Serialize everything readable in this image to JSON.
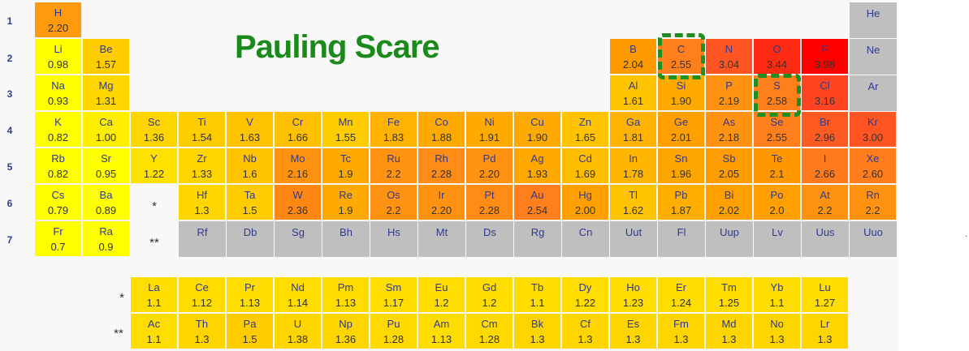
{
  "title": "Pauling Scare",
  "row_labels": [
    "1",
    "2",
    "3",
    "4",
    "5",
    "6",
    "7"
  ],
  "series_markers": [
    "*",
    "**"
  ],
  "right_dot": ".",
  "highlighted": [
    "C",
    "S"
  ],
  "elements": [
    {
      "s": "H",
      "en": "2.20",
      "r": 1,
      "c": 1,
      "color": "#ff9a0d"
    },
    {
      "s": "He",
      "en": "",
      "r": 1,
      "c": 18,
      "color": "#bfbfbf"
    },
    {
      "s": "Li",
      "en": "0.98",
      "r": 2,
      "c": 1,
      "color": "#ffff00"
    },
    {
      "s": "Be",
      "en": "1.57",
      "r": 2,
      "c": 2,
      "color": "#ffcc00"
    },
    {
      "s": "B",
      "en": "2.04",
      "r": 2,
      "c": 13,
      "color": "#ff9900"
    },
    {
      "s": "C",
      "en": "2.55",
      "r": 2,
      "c": 14,
      "color": "#ff7f1c"
    },
    {
      "s": "N",
      "en": "3.04",
      "r": 2,
      "c": 15,
      "color": "#ff5522"
    },
    {
      "s": "O",
      "en": "3.44",
      "r": 2,
      "c": 16,
      "color": "#ff2a12"
    },
    {
      "s": "F",
      "en": "3.98",
      "r": 2,
      "c": 17,
      "color": "#ff0000"
    },
    {
      "s": "Ne",
      "en": "",
      "r": 2,
      "c": 18,
      "color": "#bfbfbf"
    },
    {
      "s": "Na",
      "en": "0.93",
      "r": 3,
      "c": 1,
      "color": "#ffff00"
    },
    {
      "s": "Mg",
      "en": "1.31",
      "r": 3,
      "c": 2,
      "color": "#ffd700"
    },
    {
      "s": "Al",
      "en": "1.61",
      "r": 3,
      "c": 13,
      "color": "#ffc300"
    },
    {
      "s": "Si",
      "en": "1.90",
      "r": 3,
      "c": 14,
      "color": "#ffaa00"
    },
    {
      "s": "P",
      "en": "2.19",
      "r": 3,
      "c": 15,
      "color": "#ff9311"
    },
    {
      "s": "S",
      "en": "2.58",
      "r": 3,
      "c": 16,
      "color": "#ff7f1c"
    },
    {
      "s": "Cl",
      "en": "3.16",
      "r": 3,
      "c": 17,
      "color": "#ff4422"
    },
    {
      "s": "Ar",
      "en": "",
      "r": 3,
      "c": 18,
      "color": "#bfbfbf"
    },
    {
      "s": "K",
      "en": "0.82",
      "r": 4,
      "c": 1,
      "color": "#ffff00"
    },
    {
      "s": "Ca",
      "en": "1.00",
      "r": 4,
      "c": 2,
      "color": "#ffee00"
    },
    {
      "s": "Sc",
      "en": "1.36",
      "r": 4,
      "c": 3,
      "color": "#ffd500"
    },
    {
      "s": "Ti",
      "en": "1.54",
      "r": 4,
      "c": 4,
      "color": "#ffcc00"
    },
    {
      "s": "V",
      "en": "1.63",
      "r": 4,
      "c": 5,
      "color": "#ffc300"
    },
    {
      "s": "Cr",
      "en": "1.66",
      "r": 4,
      "c": 6,
      "color": "#ffc000"
    },
    {
      "s": "Mn",
      "en": "1.55",
      "r": 4,
      "c": 7,
      "color": "#ffcc00"
    },
    {
      "s": "Fe",
      "en": "1.83",
      "r": 4,
      "c": 8,
      "color": "#ffb300"
    },
    {
      "s": "Co",
      "en": "1.88",
      "r": 4,
      "c": 9,
      "color": "#ffaa00"
    },
    {
      "s": "Ni",
      "en": "1.91",
      "r": 4,
      "c": 10,
      "color": "#ffaa00"
    },
    {
      "s": "Cu",
      "en": "1.90",
      "r": 4,
      "c": 11,
      "color": "#ffaa00"
    },
    {
      "s": "Zn",
      "en": "1.65",
      "r": 4,
      "c": 12,
      "color": "#ffc300"
    },
    {
      "s": "Ga",
      "en": "1.81",
      "r": 4,
      "c": 13,
      "color": "#ffb300"
    },
    {
      "s": "Ge",
      "en": "2.01",
      "r": 4,
      "c": 14,
      "color": "#ff9f00"
    },
    {
      "s": "As",
      "en": "2.18",
      "r": 4,
      "c": 15,
      "color": "#ff9311"
    },
    {
      "s": "Se",
      "en": "2.55",
      "r": 4,
      "c": 16,
      "color": "#ff7f1c"
    },
    {
      "s": "Br",
      "en": "2.96",
      "r": 4,
      "c": 17,
      "color": "#ff5a22"
    },
    {
      "s": "Kr",
      "en": "3.00",
      "r": 4,
      "c": 18,
      "color": "#ff5522"
    },
    {
      "s": "Rb",
      "en": "0.82",
      "r": 5,
      "c": 1,
      "color": "#ffff00"
    },
    {
      "s": "Sr",
      "en": "0.95",
      "r": 5,
      "c": 2,
      "color": "#ffff00"
    },
    {
      "s": "Y",
      "en": "1.22",
      "r": 5,
      "c": 3,
      "color": "#ffe100"
    },
    {
      "s": "Zr",
      "en": "1.33",
      "r": 5,
      "c": 4,
      "color": "#ffd500"
    },
    {
      "s": "Nb",
      "en": "1.6",
      "r": 5,
      "c": 5,
      "color": "#ffc300"
    },
    {
      "s": "Mo",
      "en": "2.16",
      "r": 5,
      "c": 6,
      "color": "#ff9311"
    },
    {
      "s": "Tc",
      "en": "1.9",
      "r": 5,
      "c": 7,
      "color": "#ffaa00"
    },
    {
      "s": "Ru",
      "en": "2.2",
      "r": 5,
      "c": 8,
      "color": "#ff9311"
    },
    {
      "s": "Rh",
      "en": "2.28",
      "r": 5,
      "c": 9,
      "color": "#ff8c14"
    },
    {
      "s": "Pd",
      "en": "2.20",
      "r": 5,
      "c": 10,
      "color": "#ff9311"
    },
    {
      "s": "Ag",
      "en": "1.93",
      "r": 5,
      "c": 11,
      "color": "#ffa800"
    },
    {
      "s": "Cd",
      "en": "1.69",
      "r": 5,
      "c": 12,
      "color": "#ffbd00"
    },
    {
      "s": "In",
      "en": "1.78",
      "r": 5,
      "c": 13,
      "color": "#ffb600"
    },
    {
      "s": "Sn",
      "en": "1.96",
      "r": 5,
      "c": 14,
      "color": "#ffa500"
    },
    {
      "s": "Sb",
      "en": "2.05",
      "r": 5,
      "c": 15,
      "color": "#ff9c00"
    },
    {
      "s": "Te",
      "en": "2.1",
      "r": 5,
      "c": 16,
      "color": "#ff9800"
    },
    {
      "s": "I",
      "en": "2.66",
      "r": 5,
      "c": 17,
      "color": "#ff7a1c"
    },
    {
      "s": "Xe",
      "en": "2.60",
      "r": 5,
      "c": 18,
      "color": "#ff7d1c"
    },
    {
      "s": "Cs",
      "en": "0.79",
      "r": 6,
      "c": 1,
      "color": "#ffff00"
    },
    {
      "s": "Ba",
      "en": "0.89",
      "r": 6,
      "c": 2,
      "color": "#ffff00"
    },
    {
      "s": "Hf",
      "en": "1.3",
      "r": 6,
      "c": 4,
      "color": "#ffd700"
    },
    {
      "s": "Ta",
      "en": "1.5",
      "r": 6,
      "c": 5,
      "color": "#ffcc00"
    },
    {
      "s": "W",
      "en": "2.36",
      "r": 6,
      "c": 6,
      "color": "#ff8815"
    },
    {
      "s": "Re",
      "en": "1.9",
      "r": 6,
      "c": 7,
      "color": "#ffaa00"
    },
    {
      "s": "Os",
      "en": "2.2",
      "r": 6,
      "c": 8,
      "color": "#ff9311"
    },
    {
      "s": "Ir",
      "en": "2.20",
      "r": 6,
      "c": 9,
      "color": "#ff9311"
    },
    {
      "s": "Pt",
      "en": "2.28",
      "r": 6,
      "c": 10,
      "color": "#ff8c14"
    },
    {
      "s": "Au",
      "en": "2.54",
      "r": 6,
      "c": 11,
      "color": "#ff7f1c"
    },
    {
      "s": "Hg",
      "en": "2.00",
      "r": 6,
      "c": 12,
      "color": "#ffa000"
    },
    {
      "s": "Tl",
      "en": "1.62",
      "r": 6,
      "c": 13,
      "color": "#ffc300"
    },
    {
      "s": "Pb",
      "en": "1.87",
      "r": 6,
      "c": 14,
      "color": "#ffae00"
    },
    {
      "s": "Bi",
      "en": "2.02",
      "r": 6,
      "c": 15,
      "color": "#ff9f00"
    },
    {
      "s": "Po",
      "en": "2.0",
      "r": 6,
      "c": 16,
      "color": "#ffa000"
    },
    {
      "s": "At",
      "en": "2.2",
      "r": 6,
      "c": 17,
      "color": "#ff9311"
    },
    {
      "s": "Rn",
      "en": "2.2",
      "r": 6,
      "c": 18,
      "color": "#ff9311"
    },
    {
      "s": "Fr",
      "en": "0.7",
      "r": 7,
      "c": 1,
      "color": "#ffff00"
    },
    {
      "s": "Ra",
      "en": "0.9",
      "r": 7,
      "c": 2,
      "color": "#ffff00"
    },
    {
      "s": "Rf",
      "en": "",
      "r": 7,
      "c": 4,
      "color": "#bfbfbf"
    },
    {
      "s": "Db",
      "en": "",
      "r": 7,
      "c": 5,
      "color": "#bfbfbf"
    },
    {
      "s": "Sg",
      "en": "",
      "r": 7,
      "c": 6,
      "color": "#bfbfbf"
    },
    {
      "s": "Bh",
      "en": "",
      "r": 7,
      "c": 7,
      "color": "#bfbfbf"
    },
    {
      "s": "Hs",
      "en": "",
      "r": 7,
      "c": 8,
      "color": "#bfbfbf"
    },
    {
      "s": "Mt",
      "en": "",
      "r": 7,
      "c": 9,
      "color": "#bfbfbf"
    },
    {
      "s": "Ds",
      "en": "",
      "r": 7,
      "c": 10,
      "color": "#bfbfbf"
    },
    {
      "s": "Rg",
      "en": "",
      "r": 7,
      "c": 11,
      "color": "#bfbfbf"
    },
    {
      "s": "Cn",
      "en": "",
      "r": 7,
      "c": 12,
      "color": "#bfbfbf"
    },
    {
      "s": "Uut",
      "en": "",
      "r": 7,
      "c": 13,
      "color": "#bfbfbf"
    },
    {
      "s": "Fl",
      "en": "",
      "r": 7,
      "c": 14,
      "color": "#bfbfbf"
    },
    {
      "s": "Uup",
      "en": "",
      "r": 7,
      "c": 15,
      "color": "#bfbfbf"
    },
    {
      "s": "Lv",
      "en": "",
      "r": 7,
      "c": 16,
      "color": "#bfbfbf"
    },
    {
      "s": "Uus",
      "en": "",
      "r": 7,
      "c": 17,
      "color": "#bfbfbf"
    },
    {
      "s": "Uuo",
      "en": "",
      "r": 7,
      "c": 18,
      "color": "#bfbfbf"
    },
    {
      "s": "La",
      "en": "1.1",
      "r": 8,
      "c": 3,
      "color": "#ffdd00"
    },
    {
      "s": "Ce",
      "en": "1.12",
      "r": 8,
      "c": 4,
      "color": "#ffdd00"
    },
    {
      "s": "Pr",
      "en": "1.13",
      "r": 8,
      "c": 5,
      "color": "#ffdd00"
    },
    {
      "s": "Nd",
      "en": "1.14",
      "r": 8,
      "c": 6,
      "color": "#ffdd00"
    },
    {
      "s": "Pm",
      "en": "1.13",
      "r": 8,
      "c": 7,
      "color": "#ffdd00"
    },
    {
      "s": "Sm",
      "en": "1.17",
      "r": 8,
      "c": 8,
      "color": "#ffdd00"
    },
    {
      "s": "Eu",
      "en": "1.2",
      "r": 8,
      "c": 9,
      "color": "#ffdd00"
    },
    {
      "s": "Gd",
      "en": "1.2",
      "r": 8,
      "c": 10,
      "color": "#ffdd00"
    },
    {
      "s": "Tb",
      "en": "1.1",
      "r": 8,
      "c": 11,
      "color": "#ffdd00"
    },
    {
      "s": "Dy",
      "en": "1.22",
      "r": 8,
      "c": 12,
      "color": "#ffdd00"
    },
    {
      "s": "Ho",
      "en": "1.23",
      "r": 8,
      "c": 13,
      "color": "#ffdd00"
    },
    {
      "s": "Er",
      "en": "1.24",
      "r": 8,
      "c": 14,
      "color": "#ffdd00"
    },
    {
      "s": "Tm",
      "en": "1.25",
      "r": 8,
      "c": 15,
      "color": "#ffdd00"
    },
    {
      "s": "Yb",
      "en": "1.1",
      "r": 8,
      "c": 16,
      "color": "#ffdd00"
    },
    {
      "s": "Lu",
      "en": "1.27",
      "r": 8,
      "c": 17,
      "color": "#ffdd00"
    },
    {
      "s": "Ac",
      "en": "1.1",
      "r": 9,
      "c": 3,
      "color": "#ffdd00"
    },
    {
      "s": "Th",
      "en": "1.3",
      "r": 9,
      "c": 4,
      "color": "#ffd500"
    },
    {
      "s": "Pa",
      "en": "1.5",
      "r": 9,
      "c": 5,
      "color": "#ffcc00"
    },
    {
      "s": "U",
      "en": "1.38",
      "r": 9,
      "c": 6,
      "color": "#ffd500"
    },
    {
      "s": "Np",
      "en": "1.36",
      "r": 9,
      "c": 7,
      "color": "#ffd500"
    },
    {
      "s": "Pu",
      "en": "1.28",
      "r": 9,
      "c": 8,
      "color": "#ffd900"
    },
    {
      "s": "Am",
      "en": "1.13",
      "r": 9,
      "c": 9,
      "color": "#ffdd00"
    },
    {
      "s": "Cm",
      "en": "1.28",
      "r": 9,
      "c": 10,
      "color": "#ffd900"
    },
    {
      "s": "Bk",
      "en": "1.3",
      "r": 9,
      "c": 11,
      "color": "#ffd500"
    },
    {
      "s": "Cf",
      "en": "1.3",
      "r": 9,
      "c": 12,
      "color": "#ffd500"
    },
    {
      "s": "Es",
      "en": "1.3",
      "r": 9,
      "c": 13,
      "color": "#ffd500"
    },
    {
      "s": "Fm",
      "en": "1.3",
      "r": 9,
      "c": 14,
      "color": "#ffd500"
    },
    {
      "s": "Md",
      "en": "1.3",
      "r": 9,
      "c": 15,
      "color": "#ffd500"
    },
    {
      "s": "No",
      "en": "1.3",
      "r": 9,
      "c": 16,
      "color": "#ffd500"
    },
    {
      "s": "Lr",
      "en": "1.3",
      "r": 9,
      "c": 17,
      "color": "#ffd500"
    }
  ]
}
